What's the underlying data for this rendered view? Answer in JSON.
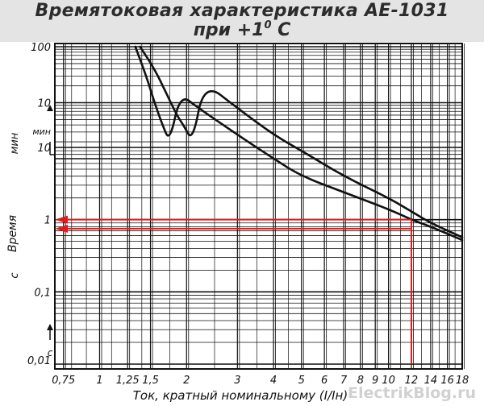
{
  "header": {
    "title": "Времятоковая характеристика АЕ-1031",
    "subtitle_prefix": "при +1",
    "subtitle_sup": "0",
    "subtitle_suffix": " С"
  },
  "watermark": "ElectrikBlog.ru",
  "chart_data": {
    "type": "line",
    "title": "Времятоковая характеристика АЕ-1031 при +1° С",
    "xlabel": "Ток, кратный номинальному (I/Iн)",
    "ylabel": "Время",
    "xscale": "log",
    "xlim": [
      0.7,
      18
    ],
    "x_ticks": [
      0.75,
      1,
      1.25,
      1.5,
      2,
      3,
      4,
      5,
      6,
      7,
      8,
      9,
      10,
      12,
      14,
      16,
      18
    ],
    "x_tick_labels": [
      "0,75",
      "1",
      "1,25",
      "1,5",
      "2",
      "3",
      "4",
      "5",
      "6",
      "7",
      "8",
      "9",
      "10",
      "12",
      "14",
      "16",
      "18"
    ],
    "y_tick_labels": [
      "100",
      "10",
      "мин",
      "10",
      "1",
      "0,1",
      "0,01"
    ],
    "y_axis_units": {
      "upper": "мин",
      "lower": "с"
    },
    "y_segments": [
      {
        "unit": "мин",
        "range": [
          1,
          100
        ]
      },
      {
        "unit": "с",
        "range": [
          0.01,
          10
        ]
      }
    ],
    "grid": true,
    "series": [
      {
        "points": [
          {
            "x": 1.33,
            "t": 100,
            "unit": "мин"
          },
          {
            "x": 1.45,
            "t": 30,
            "unit": "мин"
          },
          {
            "x": 1.55,
            "t": 10,
            "unit": "мин"
          },
          {
            "x": 1.65,
            "t": 4,
            "unit": "мин"
          },
          {
            "x": 1.75,
            "t": 2,
            "unit": "мин"
          },
          {
            "x": 1.9,
            "t": 55,
            "unit": "с"
          },
          {
            "x": 2.2,
            "t": 35,
            "unit": "с"
          },
          {
            "x": 3,
            "t": 15,
            "unit": "с"
          },
          {
            "x": 4,
            "t": 7,
            "unit": "с"
          },
          {
            "x": 5,
            "t": 4,
            "unit": "с"
          },
          {
            "x": 7,
            "t": 2.4,
            "unit": "с"
          },
          {
            "x": 10,
            "t": 1.4,
            "unit": "с"
          },
          {
            "x": 12,
            "t": 1,
            "unit": "с"
          },
          {
            "x": 14,
            "t": 0.8,
            "unit": "с"
          },
          {
            "x": 18,
            "t": 0.52,
            "unit": "с"
          }
        ]
      },
      {
        "points": [
          {
            "x": 1.38,
            "t": 100,
            "unit": "мин"
          },
          {
            "x": 1.55,
            "t": 40,
            "unit": "мин"
          },
          {
            "x": 1.7,
            "t": 15,
            "unit": "мин"
          },
          {
            "x": 1.85,
            "t": 6,
            "unit": "мин"
          },
          {
            "x": 1.95,
            "t": 4,
            "unit": "мин"
          },
          {
            "x": 2.1,
            "t": 2,
            "unit": "мин"
          },
          {
            "x": 2.3,
            "t": 80,
            "unit": "с"
          },
          {
            "x": 3,
            "t": 35,
            "unit": "с"
          },
          {
            "x": 4,
            "t": 15,
            "unit": "с"
          },
          {
            "x": 5,
            "t": 9,
            "unit": "с"
          },
          {
            "x": 7,
            "t": 4,
            "unit": "с"
          },
          {
            "x": 10,
            "t": 2,
            "unit": "с"
          },
          {
            "x": 12,
            "t": 1.3,
            "unit": "с"
          },
          {
            "x": 14,
            "t": 0.9,
            "unit": "с"
          },
          {
            "x": 18,
            "t": 0.57,
            "unit": "с"
          }
        ]
      }
    ],
    "annotations": [
      {
        "type": "vertical_marker",
        "x": 12,
        "from_t": 0.01,
        "to_t": 1.0,
        "unit": "с",
        "color": "#e01a1a"
      },
      {
        "type": "horizontal_arrow",
        "at_t": 1.0,
        "unit": "с",
        "from_x": 12,
        "color": "#e01a1a"
      },
      {
        "type": "horizontal_arrow",
        "at_t": 0.75,
        "unit": "с",
        "from_x": 12,
        "color": "#e01a1a"
      }
    ]
  },
  "colors": {
    "curve": "#111111",
    "grid": "#111111",
    "marker": "#e01a1a",
    "header_bg": "#e4e4e4",
    "watermark": "#c9c9c9"
  }
}
